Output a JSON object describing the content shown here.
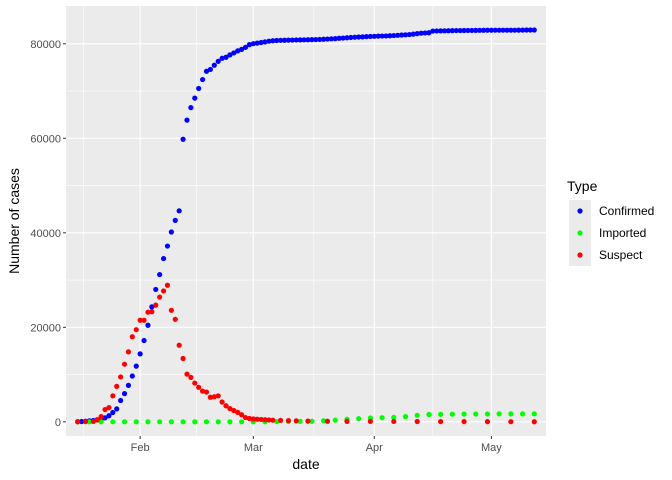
{
  "chart_data": {
    "type": "scatter",
    "xlabel": "date",
    "ylabel": "Number of cases",
    "x_type": "date",
    "xlim": [
      "2020-01-13",
      "2020-05-15"
    ],
    "ylim": [
      -3000,
      88000
    ],
    "x_ticks": [
      {
        "date": "2020-02-01",
        "label": "Feb"
      },
      {
        "date": "2020-03-01",
        "label": "Mar"
      },
      {
        "date": "2020-04-01",
        "label": "Apr"
      },
      {
        "date": "2020-05-01",
        "label": "May"
      }
    ],
    "y_ticks": [
      0,
      20000,
      40000,
      60000,
      80000
    ],
    "y_tick_labels": [
      "0",
      "20000",
      "40000",
      "60000",
      "80000"
    ],
    "grid": true,
    "panel_background": "#ebebeb",
    "legend": {
      "title": "Type",
      "position": "right",
      "entries": [
        "Confirmed",
        "Imported",
        "Suspect"
      ]
    },
    "series": [
      {
        "name": "Confirmed",
        "color": "#0000ff",
        "x": [
          "2020-01-16",
          "2020-01-17",
          "2020-01-18",
          "2020-01-19",
          "2020-01-20",
          "2020-01-21",
          "2020-01-22",
          "2020-01-23",
          "2020-01-24",
          "2020-01-25",
          "2020-01-26",
          "2020-01-27",
          "2020-01-28",
          "2020-01-29",
          "2020-01-30",
          "2020-01-31",
          "2020-02-01",
          "2020-02-02",
          "2020-02-03",
          "2020-02-04",
          "2020-02-05",
          "2020-02-06",
          "2020-02-07",
          "2020-02-08",
          "2020-02-09",
          "2020-02-10",
          "2020-02-11",
          "2020-02-12",
          "2020-02-13",
          "2020-02-14",
          "2020-02-15",
          "2020-02-16",
          "2020-02-17",
          "2020-02-18",
          "2020-02-19",
          "2020-02-20",
          "2020-02-21",
          "2020-02-22",
          "2020-02-23",
          "2020-02-24",
          "2020-02-25",
          "2020-02-26",
          "2020-02-27",
          "2020-02-28",
          "2020-02-29",
          "2020-03-01",
          "2020-03-02",
          "2020-03-03",
          "2020-03-04",
          "2020-03-05",
          "2020-03-06",
          "2020-03-07",
          "2020-03-08",
          "2020-03-09",
          "2020-03-10",
          "2020-03-11",
          "2020-03-12",
          "2020-03-13",
          "2020-03-14",
          "2020-03-15",
          "2020-03-16",
          "2020-03-17",
          "2020-03-18",
          "2020-03-19",
          "2020-03-20",
          "2020-03-21",
          "2020-03-22",
          "2020-03-23",
          "2020-03-24",
          "2020-03-25",
          "2020-03-26",
          "2020-03-27",
          "2020-03-28",
          "2020-03-29",
          "2020-03-30",
          "2020-03-31",
          "2020-04-01",
          "2020-04-02",
          "2020-04-03",
          "2020-04-04",
          "2020-04-05",
          "2020-04-06",
          "2020-04-07",
          "2020-04-08",
          "2020-04-09",
          "2020-04-10",
          "2020-04-11",
          "2020-04-12",
          "2020-04-13",
          "2020-04-14",
          "2020-04-15",
          "2020-04-16",
          "2020-04-17",
          "2020-04-18",
          "2020-04-19",
          "2020-04-20",
          "2020-04-21",
          "2020-04-22",
          "2020-04-23",
          "2020-04-24",
          "2020-04-25",
          "2020-04-26",
          "2020-04-27",
          "2020-04-28",
          "2020-04-29",
          "2020-04-30",
          "2020-05-01",
          "2020-05-02",
          "2020-05-03",
          "2020-05-04",
          "2020-05-05",
          "2020-05-06",
          "2020-05-07",
          "2020-05-08",
          "2020-05-09",
          "2020-05-10",
          "2020-05-11",
          "2020-05-12"
        ],
        "y": [
          45,
          62,
          121,
          198,
          291,
          440,
          571,
          830,
          1287,
          1975,
          2744,
          4515,
          5974,
          7711,
          9692,
          11791,
          14380,
          17205,
          20438,
          24324,
          28018,
          31161,
          34546,
          37198,
          40171,
          42638,
          44653,
          59804,
          63851,
          66492,
          68500,
          70548,
          72436,
          74185,
          74576,
          75465,
          76288,
          76936,
          77150,
          77658,
          78064,
          78497,
          78824,
          79251,
          79824,
          80026,
          80151,
          80270,
          80409,
          80552,
          80651,
          80695,
          80735,
          80754,
          80778,
          80793,
          80813,
          80824,
          80844,
          80860,
          80881,
          80894,
          80928,
          80967,
          81008,
          81054,
          81093,
          81171,
          81218,
          81285,
          81340,
          81394,
          81439,
          81470,
          81518,
          81554,
          81589,
          81620,
          81639,
          81669,
          81708,
          81740,
          81802,
          81865,
          81907,
          81953,
          82052,
          82160,
          82249,
          82295,
          82341,
          82692,
          82719,
          82735,
          82747,
          82758,
          82788,
          82798,
          82804,
          82816,
          82827,
          82830,
          82836,
          82858,
          82862,
          82874,
          82875,
          82877,
          82880,
          82881,
          82883,
          82885,
          82886,
          82887,
          82901,
          82918,
          82919,
          82926
        ]
      },
      {
        "name": "Imported",
        "color": "#00ff00",
        "x": [
          "2020-01-16",
          "2020-01-19",
          "2020-01-22",
          "2020-01-25",
          "2020-01-28",
          "2020-01-31",
          "2020-02-03",
          "2020-02-06",
          "2020-02-09",
          "2020-02-12",
          "2020-02-15",
          "2020-02-18",
          "2020-02-21",
          "2020-02-24",
          "2020-02-27",
          "2020-03-01",
          "2020-03-04",
          "2020-03-07",
          "2020-03-10",
          "2020-03-13",
          "2020-03-16",
          "2020-03-19",
          "2020-03-22",
          "2020-03-25",
          "2020-03-28",
          "2020-03-31",
          "2020-04-03",
          "2020-04-06",
          "2020-04-09",
          "2020-04-12",
          "2020-04-15",
          "2020-04-18",
          "2020-04-21",
          "2020-04-24",
          "2020-04-27",
          "2020-04-30",
          "2020-05-03",
          "2020-05-06",
          "2020-05-09",
          "2020-05-12"
        ],
        "y": [
          0,
          0,
          0,
          0,
          0,
          0,
          0,
          0,
          0,
          0,
          0,
          0,
          0,
          0,
          0,
          0,
          20,
          60,
          79,
          95,
          123,
          228,
          353,
          540,
          693,
          806,
          870,
          951,
          1103,
          1378,
          1549,
          1583,
          1610,
          1636,
          1660,
          1670,
          1680,
          1683,
          1686,
          1698
        ]
      },
      {
        "name": "Suspect",
        "color": "#ff0000",
        "x": [
          "2020-01-16",
          "2020-01-18",
          "2020-01-20",
          "2020-01-21",
          "2020-01-22",
          "2020-01-23",
          "2020-01-24",
          "2020-01-25",
          "2020-01-26",
          "2020-01-27",
          "2020-01-28",
          "2020-01-29",
          "2020-01-30",
          "2020-01-31",
          "2020-02-01",
          "2020-02-02",
          "2020-02-03",
          "2020-02-04",
          "2020-02-05",
          "2020-02-06",
          "2020-02-07",
          "2020-02-08",
          "2020-02-09",
          "2020-02-10",
          "2020-02-11",
          "2020-02-12",
          "2020-02-13",
          "2020-02-14",
          "2020-02-15",
          "2020-02-16",
          "2020-02-17",
          "2020-02-18",
          "2020-02-19",
          "2020-02-20",
          "2020-02-21",
          "2020-02-22",
          "2020-02-23",
          "2020-02-24",
          "2020-02-25",
          "2020-02-26",
          "2020-02-27",
          "2020-02-28",
          "2020-02-29",
          "2020-03-01",
          "2020-03-02",
          "2020-03-03",
          "2020-03-04",
          "2020-03-05",
          "2020-03-06",
          "2020-03-08",
          "2020-03-10",
          "2020-03-12",
          "2020-03-15",
          "2020-03-20",
          "2020-03-25",
          "2020-03-31",
          "2020-04-06",
          "2020-04-12",
          "2020-04-18",
          "2020-04-24",
          "2020-04-30",
          "2020-05-06",
          "2020-05-12"
        ],
        "y": [
          0,
          50,
          100,
          400,
          1100,
          2600,
          3000,
          5500,
          7500,
          9500,
          12200,
          14800,
          18000,
          19500,
          21500,
          21500,
          23200,
          23300,
          24700,
          26400,
          27700,
          28900,
          23600,
          21700,
          16200,
          13400,
          10100,
          9400,
          8200,
          7300,
          6500,
          6300,
          5200,
          5300,
          5500,
          4200,
          3400,
          2800,
          2400,
          2000,
          1500,
          900,
          700,
          600,
          550,
          500,
          450,
          400,
          350,
          300,
          250,
          200,
          150,
          120,
          100,
          90,
          80,
          70,
          60,
          50,
          40,
          30,
          20
        ]
      }
    ]
  }
}
